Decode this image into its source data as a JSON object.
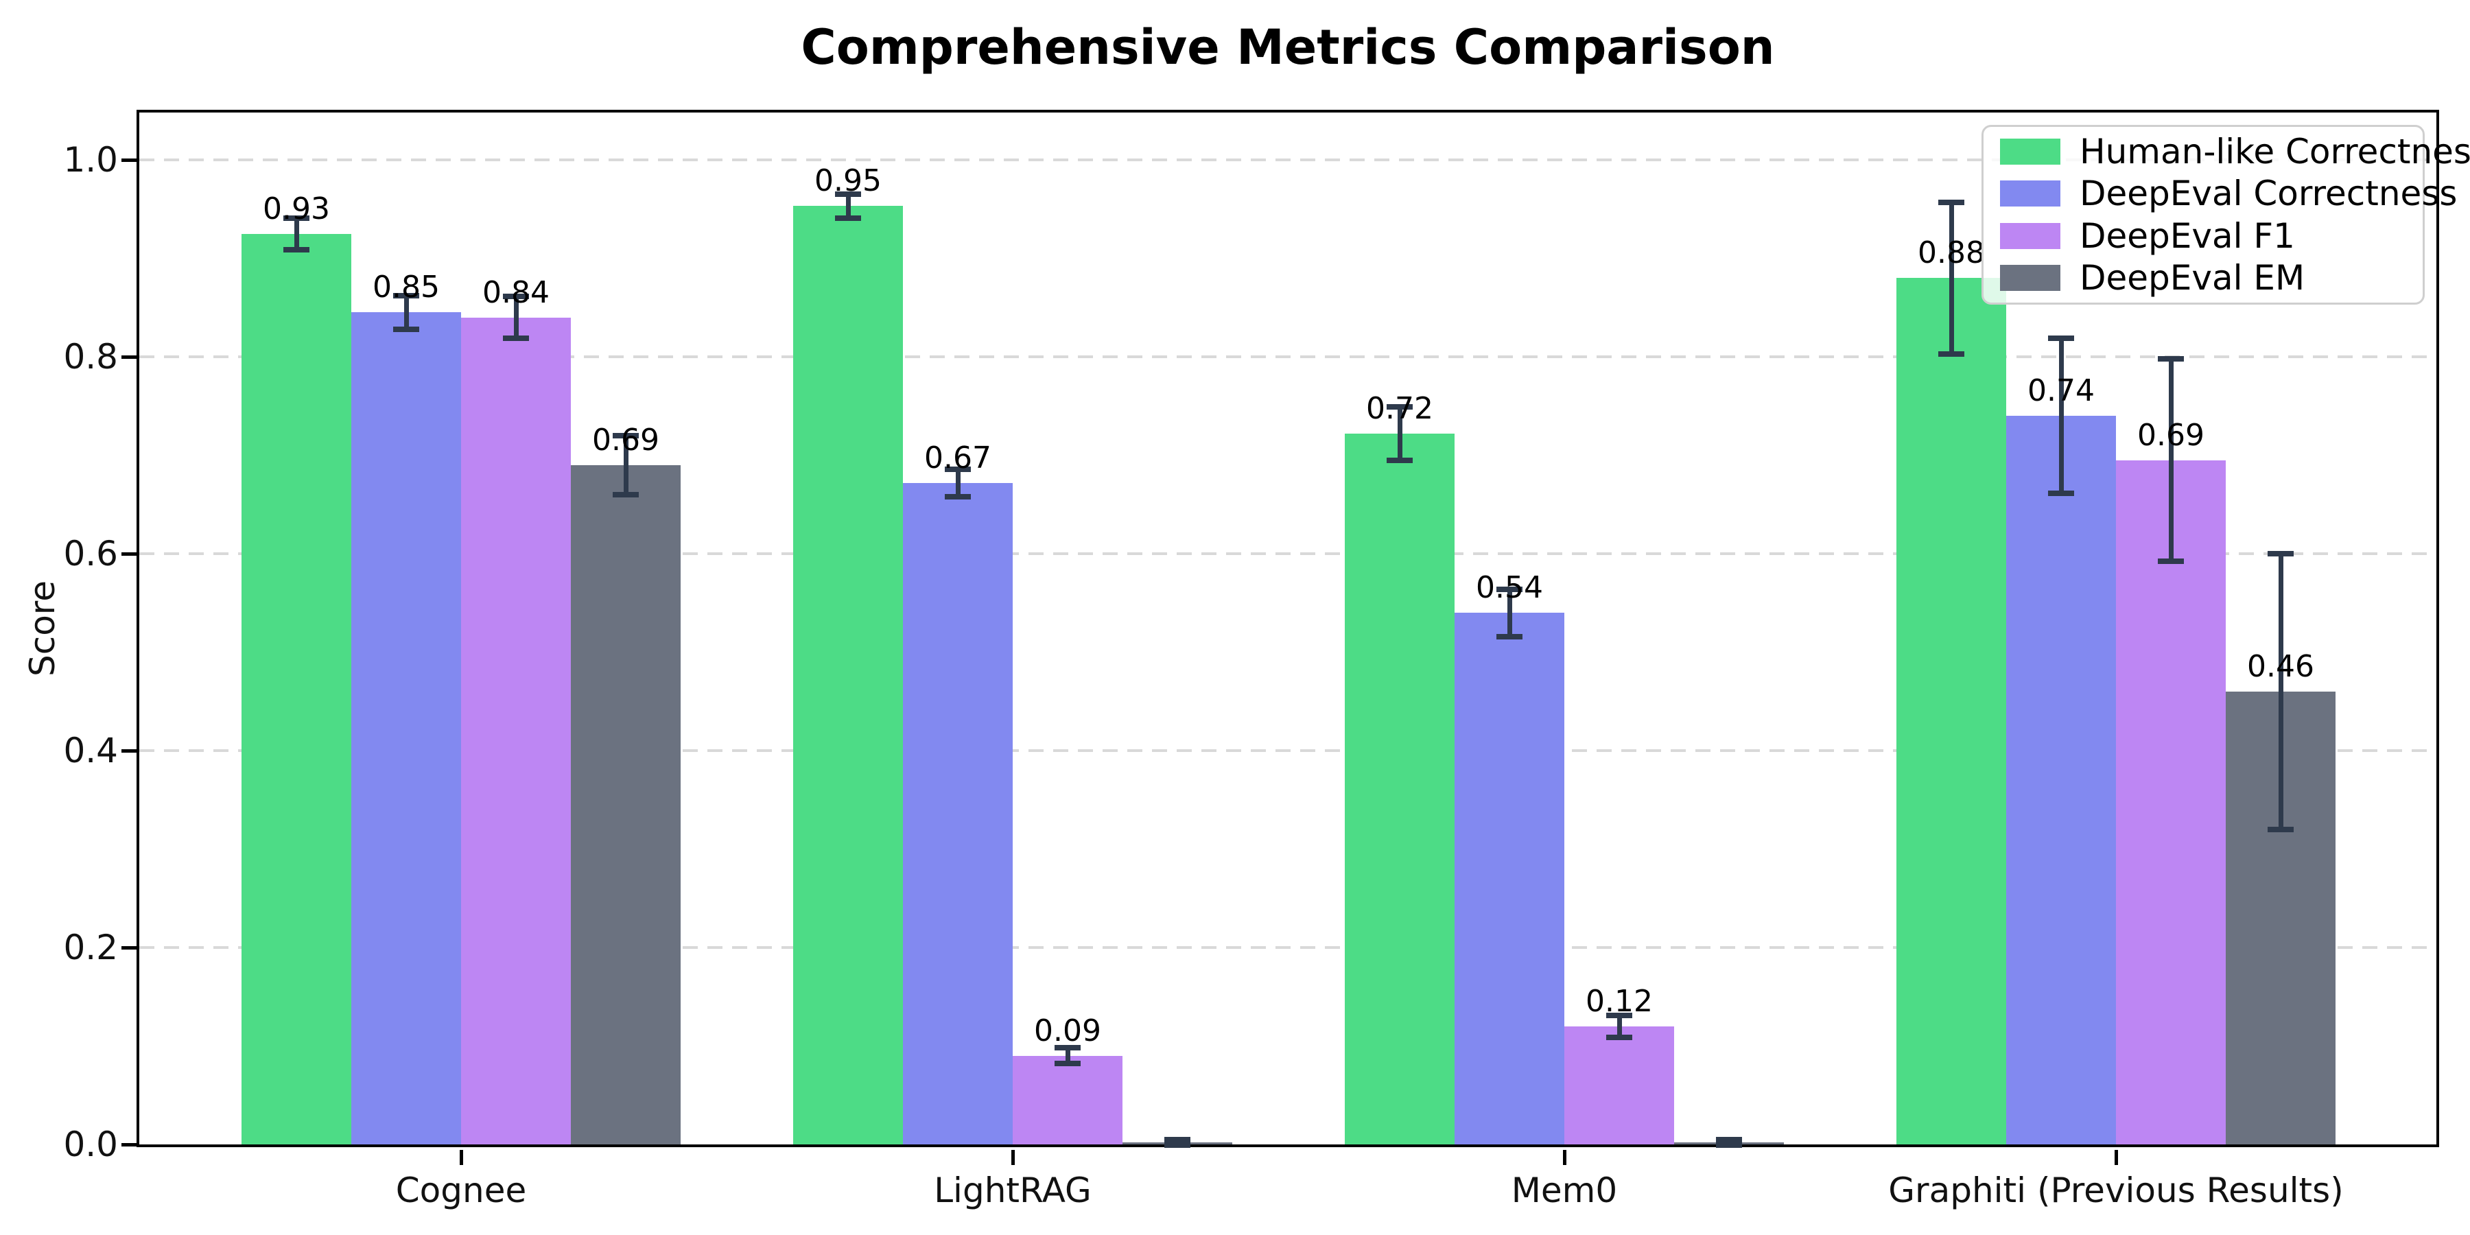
{
  "chart_data": {
    "type": "bar",
    "title": "Comprehensive Metrics Comparison",
    "xlabel": "",
    "ylabel": "Score",
    "ylim": [
      0.0,
      1.05
    ],
    "yticks": [
      0.0,
      0.2,
      0.4,
      0.6,
      0.8,
      1.0
    ],
    "grid": "horizontal-dashed",
    "legend_position": "upper-right",
    "categories": [
      "Cognee",
      "LightRAG",
      "Mem0",
      "Graphiti (Previous Results)"
    ],
    "series": [
      {
        "name": "Human-like Correctness",
        "color": "#4ddc86",
        "values": [
          0.93,
          0.95,
          0.72,
          0.88
        ],
        "heights": [
          0.925,
          0.953,
          0.722,
          0.88
        ],
        "errors": [
          0.016,
          0.012,
          0.027,
          0.077
        ],
        "bar_labels": [
          "0.93",
          "0.95",
          "0.72",
          "0.88"
        ]
      },
      {
        "name": "DeepEval Correctness",
        "color": "#8289f0",
        "values": [
          0.85,
          0.67,
          0.54,
          0.74
        ],
        "heights": [
          0.845,
          0.672,
          0.54,
          0.74
        ],
        "errors": [
          0.017,
          0.014,
          0.024,
          0.079
        ],
        "bar_labels": [
          "0.85",
          "0.67",
          "0.54",
          "0.74"
        ]
      },
      {
        "name": "DeepEval F1",
        "color": "#bd86f3",
        "values": [
          0.84,
          0.09,
          0.12,
          0.69
        ],
        "heights": [
          0.84,
          0.09,
          0.12,
          0.695
        ],
        "errors": [
          0.021,
          0.008,
          0.011,
          0.103
        ],
        "bar_labels": [
          "0.84",
          "0.09",
          "0.12",
          "0.69"
        ]
      },
      {
        "name": "DeepEval EM",
        "color": "#6b7280",
        "values": [
          0.69,
          0.0,
          0.0,
          0.46
        ],
        "heights": [
          0.69,
          0.002,
          0.002,
          0.46
        ],
        "errors": [
          0.03,
          0.003,
          0.003,
          0.14
        ],
        "bar_labels": [
          "0.69",
          null,
          null,
          "0.46"
        ]
      }
    ],
    "colors": {
      "error_bar": "#2e3a4c",
      "grid": "#d9d9d9",
      "axis": "#000000",
      "legend_border": "#cfcfcf"
    }
  }
}
